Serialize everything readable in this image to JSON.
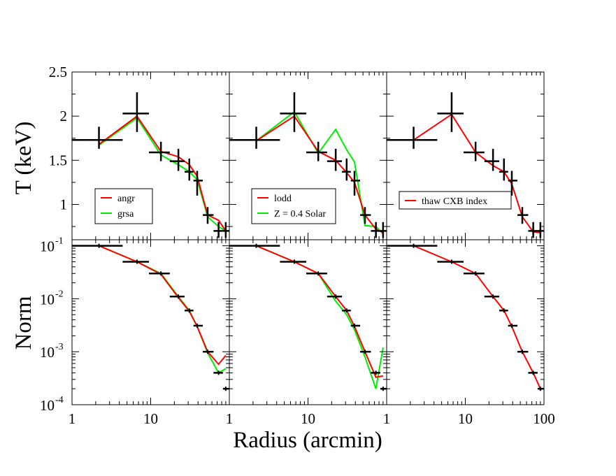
{
  "chart_data": {
    "type": "line",
    "layout": "2 rows x 3 columns, shared x axis",
    "xlabel": "Radius (arcmin)",
    "x_scale": "log",
    "xlim": [
      1,
      100
    ],
    "x_tick_labels": [
      "1",
      "10",
      "1",
      "10",
      "1",
      "10",
      "100"
    ],
    "rows": [
      {
        "ylabel": "T (keV)",
        "y_scale": "linear",
        "ylim": [
          0.6,
          2.5
        ],
        "y_tick_labels": [
          "1",
          "1.5",
          "2",
          "2.5"
        ],
        "y_tick_values": [
          1,
          1.5,
          2,
          2.5
        ],
        "data": {
          "x": [
            2.2,
            6.7,
            13.5,
            22.5,
            31,
            39,
            53,
            73,
            90
          ],
          "xlo": [
            1,
            4.4,
            9.5,
            17.5,
            27,
            35,
            46,
            63,
            83
          ],
          "xhi": [
            4.4,
            9.5,
            17.5,
            27,
            35,
            46,
            63,
            83,
            100
          ],
          "y": [
            1.73,
            2.03,
            1.59,
            1.49,
            1.37,
            1.27,
            0.88,
            0.7,
            0.7
          ],
          "ylo": [
            1.63,
            1.82,
            1.49,
            1.38,
            1.27,
            1.1,
            0.78,
            0.62,
            0.62
          ],
          "yhi": [
            1.88,
            2.27,
            1.71,
            1.63,
            1.52,
            1.38,
            0.97,
            0.8,
            0.8
          ]
        }
      },
      {
        "ylabel": "Norm",
        "y_scale": "log",
        "ylim": [
          0.0001,
          0.13
        ],
        "y_tick_labels": [
          {
            "base": "10",
            "exp": "-1"
          },
          {
            "base": "10",
            "exp": "-2"
          },
          {
            "base": "10",
            "exp": "-3"
          },
          {
            "base": "10",
            "exp": "-4"
          }
        ],
        "y_tick_values": [
          0.1,
          0.01,
          0.001,
          0.0001
        ],
        "data": {
          "x": [
            2.2,
            6.7,
            13.5,
            22.5,
            31,
            39,
            53,
            73,
            90
          ],
          "xlo": [
            1,
            4.4,
            9.5,
            17.5,
            27,
            35,
            46,
            63,
            83
          ],
          "xhi": [
            4.4,
            9.5,
            17.5,
            27,
            35,
            46,
            63,
            83,
            100
          ],
          "y": [
            0.1,
            0.05,
            0.03,
            0.011,
            0.006,
            0.0031,
            0.001,
            0.0004,
            0.0002
          ]
        }
      }
    ],
    "panels": [
      {
        "legend": "bottom-left",
        "series": [
          {
            "name": "angr",
            "color": "#ff0000",
            "T": [
              1.68,
              2.0,
              1.6,
              1.54,
              1.45,
              1.32,
              0.88,
              0.82,
              0.7
            ],
            "Norm": [
              0.1,
              0.05,
              0.029,
              0.0105,
              0.0058,
              0.003,
              0.001,
              0.00058,
              0.00085
            ]
          },
          {
            "name": "grsa",
            "color": "#00ee00",
            "T": [
              1.67,
              1.98,
              1.56,
              1.45,
              1.37,
              1.28,
              0.86,
              0.75,
              0.7
            ],
            "Norm": [
              0.1,
              0.05,
              0.03,
              0.011,
              0.006,
              0.003,
              0.00095,
              0.0004,
              0.00048
            ]
          }
        ]
      },
      {
        "legend": "bottom-left",
        "series": [
          {
            "name": "lodd",
            "color": "#ff0000",
            "T": [
              1.72,
              2.0,
              1.6,
              1.5,
              1.36,
              1.25,
              0.88,
              0.72,
              0.68
            ],
            "Norm": [
              0.1,
              0.05,
              0.03,
              0.011,
              0.006,
              0.003,
              0.001,
              0.00033,
              0.00035
            ]
          },
          {
            "name": "Z = 0.4 Solar",
            "color": "#00ee00",
            "T": [
              1.72,
              2.05,
              1.58,
              1.85,
              1.62,
              1.48,
              0.76,
              0.75,
              0.67
            ],
            "Norm": [
              0.1,
              0.05,
              0.03,
              0.009,
              0.005,
              0.0026,
              0.0008,
              0.0002,
              0.0012
            ]
          }
        ]
      },
      {
        "legend": "bottom-left",
        "series": [
          {
            "name": "thaw CXB index",
            "color": "#ff0000",
            "T": [
              1.73,
              2.02,
              1.59,
              1.44,
              1.37,
              1.23,
              0.86,
              0.69,
              0.68
            ],
            "Norm": [
              0.1,
              0.05,
              0.03,
              0.011,
              0.006,
              0.003,
              0.001,
              0.0004,
              0.0002
            ]
          }
        ]
      }
    ]
  }
}
